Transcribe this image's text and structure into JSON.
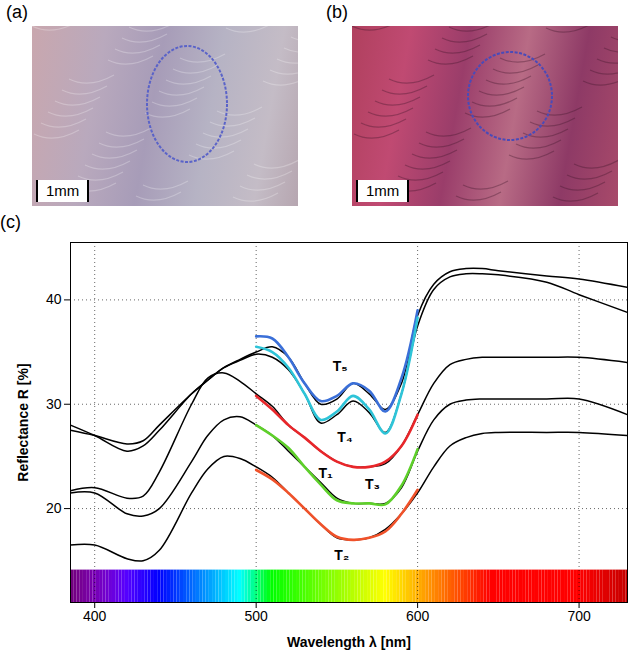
{
  "panels": [
    {
      "label": "(a)",
      "scale_bar": "1mm"
    },
    {
      "label": "(b)",
      "scale_bar": "1mm"
    }
  ],
  "chart_data": {
    "panel_label": "(c)",
    "type": "line",
    "xlabel": "Wavelength λ [nm]",
    "ylabel": "Reflectance R [%]",
    "xlim": [
      385,
      730
    ],
    "xticks": [
      400,
      500,
      600,
      700
    ],
    "ylim": [
      11,
      45.5
    ],
    "yticks": [
      20,
      30,
      40
    ],
    "grid": true,
    "series": [
      {
        "color": "#000000",
        "x": [
          385,
          400,
          420,
          430,
          440,
          460,
          470,
          480,
          490,
          500,
          510,
          520,
          530,
          540,
          550,
          560,
          570,
          580,
          590,
          600,
          610,
          620,
          630,
          640,
          650,
          680,
          700,
          730
        ],
        "values": [
          27.5,
          27,
          26.2,
          26.5,
          28,
          31,
          32.3,
          33.5,
          34.3,
          35,
          35.5,
          34.5,
          32,
          30,
          30.5,
          32,
          31,
          29.5,
          32,
          38.5,
          41.5,
          42.7,
          43,
          43,
          42.8,
          42.3,
          42,
          41.2
        ]
      },
      {
        "color": "#000000",
        "x": [
          385,
          400,
          420,
          430,
          440,
          460,
          470,
          480,
          490,
          500,
          510,
          520,
          530,
          540,
          550,
          560,
          570,
          580,
          590,
          600,
          610,
          620,
          630,
          640,
          650,
          680,
          700,
          730
        ],
        "values": [
          28,
          27,
          25.5,
          26,
          27.5,
          31,
          32.3,
          33.5,
          34.2,
          34.8,
          34.5,
          33.3,
          31,
          28.2,
          29,
          30.3,
          29.2,
          27.3,
          31,
          37.5,
          41,
          42.2,
          42.5,
          42.5,
          42.4,
          41.7,
          40.5,
          38.8
        ]
      },
      {
        "color": "#000000",
        "x": [
          385,
          400,
          420,
          430,
          440,
          460,
          470,
          480,
          490,
          500,
          510,
          520,
          530,
          540,
          550,
          560,
          570,
          580,
          590,
          600,
          610,
          620,
          630,
          640,
          650,
          680,
          700,
          730
        ],
        "values": [
          21.7,
          22,
          21,
          21.2,
          23.5,
          30,
          32.5,
          33,
          32.2,
          31,
          29.8,
          28,
          26.8,
          25.5,
          24.5,
          24,
          24,
          24.3,
          26,
          29,
          32,
          33.8,
          34.3,
          34.5,
          34.5,
          34.5,
          34.5,
          34
        ]
      },
      {
        "color": "#000000",
        "x": [
          385,
          400,
          420,
          430,
          440,
          460,
          470,
          480,
          490,
          500,
          510,
          520,
          530,
          540,
          550,
          560,
          570,
          580,
          590,
          600,
          610,
          620,
          630,
          640,
          650,
          680,
          700,
          730
        ],
        "values": [
          21.5,
          21.5,
          19.5,
          19.3,
          20,
          24.5,
          27,
          28.5,
          28.8,
          28,
          27,
          25.5,
          24,
          22.5,
          21,
          20.5,
          20.5,
          20.5,
          22,
          25.5,
          28.5,
          30,
          30.4,
          30.5,
          30.5,
          30.5,
          30.5,
          29
        ]
      },
      {
        "color": "#000000",
        "x": [
          385,
          400,
          420,
          430,
          440,
          460,
          470,
          480,
          490,
          500,
          510,
          520,
          530,
          540,
          550,
          560,
          570,
          580,
          590,
          600,
          610,
          620,
          630,
          640,
          650,
          680,
          700,
          730
        ],
        "values": [
          16.5,
          16.5,
          15.2,
          15,
          16,
          21.5,
          23.8,
          25,
          24.8,
          24,
          23,
          21.5,
          20,
          18.5,
          17.2,
          17,
          17.2,
          18,
          19.5,
          21.5,
          24,
          26,
          26.8,
          27.2,
          27.3,
          27.3,
          27.3,
          27
        ]
      },
      {
        "color": "#3a6fd8",
        "x": [
          500,
          510,
          520,
          530,
          540,
          550,
          560,
          570,
          580,
          590,
          600
        ],
        "values": [
          36.5,
          36.3,
          34.5,
          32,
          30.3,
          30.8,
          32,
          31.3,
          29.3,
          32.5,
          39
        ]
      },
      {
        "color": "#2ec4d8",
        "x": [
          500,
          510,
          520,
          530,
          540,
          550,
          560,
          570,
          580,
          590,
          600
        ],
        "values": [
          35.5,
          35,
          33.5,
          31,
          28.5,
          29.3,
          30.8,
          29.5,
          27.2,
          31,
          38.3
        ]
      },
      {
        "color": "#e8262a",
        "x": [
          500,
          510,
          520,
          530,
          540,
          550,
          560,
          570,
          580,
          590,
          600
        ],
        "values": [
          30.8,
          29.5,
          28,
          26.8,
          25.5,
          24.5,
          24,
          24,
          24.5,
          26,
          29
        ]
      },
      {
        "color": "#5ed02a",
        "x": [
          500,
          510,
          520,
          530,
          540,
          550,
          560,
          570,
          580,
          590,
          600
        ],
        "values": [
          28,
          27,
          25.8,
          24,
          22.3,
          20.8,
          20.5,
          20.5,
          20.4,
          22.2,
          25.7
        ]
      },
      {
        "color": "#f0522a",
        "x": [
          500,
          510,
          520,
          530,
          540,
          550,
          560,
          570,
          580,
          590,
          600
        ],
        "values": [
          23.7,
          22.8,
          21.5,
          20,
          18.5,
          17.3,
          17,
          17.2,
          17.8,
          19.5,
          21.8
        ]
      }
    ],
    "annotations": [
      {
        "text": "T₅",
        "x": 552,
        "y": 33.6
      },
      {
        "text": "T₄",
        "x": 555,
        "y": 26.8
      },
      {
        "text": "T₁",
        "x": 543,
        "y": 23.4
      },
      {
        "text": "T₃",
        "x": 572,
        "y": 22.3
      },
      {
        "text": "T₂",
        "x": 553,
        "y": 15.5
      }
    ]
  }
}
